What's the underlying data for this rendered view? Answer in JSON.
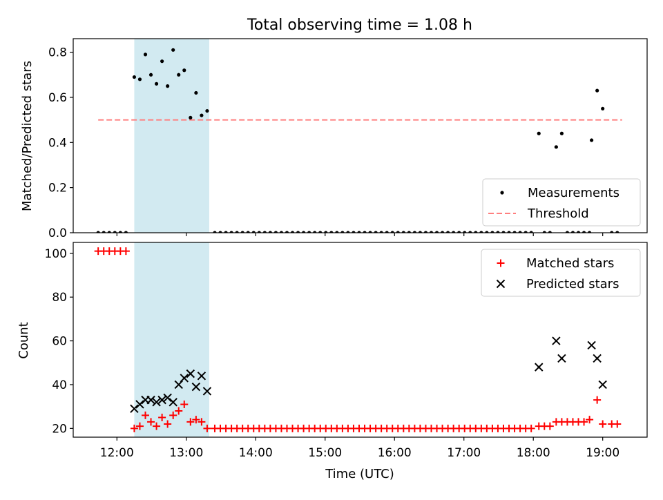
{
  "figure": {
    "title": "Total observing time = 1.08 h",
    "xlabel": "Time (UTC)",
    "xticks": [
      {
        "value": 12,
        "label": "12:00"
      },
      {
        "value": 13,
        "label": "13:00"
      },
      {
        "value": 14,
        "label": "14:00"
      },
      {
        "value": 15,
        "label": "15:00"
      },
      {
        "value": 16,
        "label": "16:00"
      },
      {
        "value": 17,
        "label": "17:00"
      },
      {
        "value": 18,
        "label": "18:00"
      },
      {
        "value": 19,
        "label": "19:00"
      }
    ],
    "xlim": [
      11.37,
      19.64
    ],
    "highlight_span": [
      12.25,
      13.33
    ],
    "colors": {
      "highlight": "#add8e6",
      "measurement": "#000000",
      "threshold": "#ff7f7f",
      "matched": "#ff0000",
      "predicted": "#000000"
    }
  },
  "chart_data": [
    {
      "type": "scatter",
      "ylabel": "Matched/Predicted stars",
      "ylim": [
        0,
        0.86
      ],
      "yticks": [
        {
          "value": 0.0,
          "label": "0.0"
        },
        {
          "value": 0.2,
          "label": "0.2"
        },
        {
          "value": 0.4,
          "label": "0.4"
        },
        {
          "value": 0.6,
          "label": "0.6"
        },
        {
          "value": 0.8,
          "label": "0.8"
        }
      ],
      "legend": {
        "position": "lower-right",
        "entries": [
          "Measurements",
          "Threshold"
        ]
      },
      "threshold": {
        "name": "Threshold",
        "y": 0.5,
        "x": [
          11.73,
          19.28
        ]
      },
      "series": [
        {
          "name": "Measurements",
          "marker": "dot",
          "points": [
            [
              11.73,
              0
            ],
            [
              11.81,
              0
            ],
            [
              11.89,
              0
            ],
            [
              11.97,
              0
            ],
            [
              12.05,
              0
            ],
            [
              12.13,
              0
            ],
            [
              12.25,
              0.69
            ],
            [
              12.33,
              0.68
            ],
            [
              12.41,
              0.79
            ],
            [
              12.49,
              0.7
            ],
            [
              12.57,
              0.66
            ],
            [
              12.65,
              0.76
            ],
            [
              12.73,
              0.65
            ],
            [
              12.81,
              0.81
            ],
            [
              12.89,
              0.7
            ],
            [
              12.97,
              0.72
            ],
            [
              13.06,
              0.51
            ],
            [
              13.14,
              0.62
            ],
            [
              13.22,
              0.52
            ],
            [
              13.3,
              0.54
            ],
            [
              13.41,
              0
            ],
            [
              13.49,
              0
            ],
            [
              13.57,
              0
            ],
            [
              13.65,
              0
            ],
            [
              13.73,
              0
            ],
            [
              13.81,
              0
            ],
            [
              13.89,
              0
            ],
            [
              13.97,
              0
            ],
            [
              14.05,
              0
            ],
            [
              14.13,
              0
            ],
            [
              14.21,
              0
            ],
            [
              14.29,
              0
            ],
            [
              14.37,
              0
            ],
            [
              14.45,
              0
            ],
            [
              14.53,
              0
            ],
            [
              14.61,
              0
            ],
            [
              14.69,
              0
            ],
            [
              14.77,
              0
            ],
            [
              14.85,
              0
            ],
            [
              14.93,
              0
            ],
            [
              15.01,
              0
            ],
            [
              15.09,
              0
            ],
            [
              15.17,
              0
            ],
            [
              15.25,
              0
            ],
            [
              15.33,
              0
            ],
            [
              15.41,
              0
            ],
            [
              15.49,
              0
            ],
            [
              15.57,
              0
            ],
            [
              15.65,
              0
            ],
            [
              15.73,
              0
            ],
            [
              15.81,
              0
            ],
            [
              15.89,
              0
            ],
            [
              15.97,
              0
            ],
            [
              16.05,
              0
            ],
            [
              16.13,
              0
            ],
            [
              16.21,
              0
            ],
            [
              16.29,
              0
            ],
            [
              16.37,
              0
            ],
            [
              16.45,
              0
            ],
            [
              16.53,
              0
            ],
            [
              16.61,
              0
            ],
            [
              16.69,
              0
            ],
            [
              16.77,
              0
            ],
            [
              16.85,
              0
            ],
            [
              16.93,
              0
            ],
            [
              17.01,
              0
            ],
            [
              17.09,
              0
            ],
            [
              17.17,
              0
            ],
            [
              17.25,
              0
            ],
            [
              17.33,
              0
            ],
            [
              17.41,
              0
            ],
            [
              17.49,
              0
            ],
            [
              17.57,
              0
            ],
            [
              17.65,
              0
            ],
            [
              17.73,
              0
            ],
            [
              17.81,
              0
            ],
            [
              17.89,
              0
            ],
            [
              17.97,
              0
            ],
            [
              18.08,
              0.44
            ],
            [
              18.16,
              0
            ],
            [
              18.24,
              0
            ],
            [
              18.33,
              0.38
            ],
            [
              18.41,
              0.44
            ],
            [
              18.49,
              0
            ],
            [
              18.57,
              0
            ],
            [
              18.65,
              0
            ],
            [
              18.73,
              0
            ],
            [
              18.81,
              0
            ],
            [
              18.84,
              0.41
            ],
            [
              18.92,
              0.63
            ],
            [
              19.0,
              0.55
            ],
            [
              19.13,
              0
            ],
            [
              19.21,
              0
            ]
          ]
        }
      ]
    },
    {
      "type": "scatter",
      "ylabel": "Count",
      "ylim": [
        16,
        105
      ],
      "yticks": [
        {
          "value": 20,
          "label": "20"
        },
        {
          "value": 40,
          "label": "40"
        },
        {
          "value": 60,
          "label": "60"
        },
        {
          "value": 80,
          "label": "80"
        },
        {
          "value": 100,
          "label": "100"
        }
      ],
      "legend": {
        "position": "upper-right",
        "entries": [
          "Matched stars",
          "Predicted stars"
        ]
      },
      "series": [
        {
          "name": "Matched stars",
          "marker": "plus",
          "points": [
            [
              11.73,
              101
            ],
            [
              11.81,
              101
            ],
            [
              11.89,
              101
            ],
            [
              11.97,
              101
            ],
            [
              12.05,
              101
            ],
            [
              12.13,
              101
            ],
            [
              12.25,
              20
            ],
            [
              12.33,
              21
            ],
            [
              12.41,
              26
            ],
            [
              12.49,
              23
            ],
            [
              12.57,
              21
            ],
            [
              12.65,
              25
            ],
            [
              12.73,
              22
            ],
            [
              12.81,
              26
            ],
            [
              12.89,
              28
            ],
            [
              12.97,
              31
            ],
            [
              13.06,
              23
            ],
            [
              13.14,
              24
            ],
            [
              13.22,
              23
            ],
            [
              13.3,
              20
            ],
            [
              13.41,
              20
            ],
            [
              13.49,
              20
            ],
            [
              13.57,
              20
            ],
            [
              13.65,
              20
            ],
            [
              13.73,
              20
            ],
            [
              13.81,
              20
            ],
            [
              13.89,
              20
            ],
            [
              13.97,
              20
            ],
            [
              14.05,
              20
            ],
            [
              14.13,
              20
            ],
            [
              14.21,
              20
            ],
            [
              14.29,
              20
            ],
            [
              14.37,
              20
            ],
            [
              14.45,
              20
            ],
            [
              14.53,
              20
            ],
            [
              14.61,
              20
            ],
            [
              14.69,
              20
            ],
            [
              14.77,
              20
            ],
            [
              14.85,
              20
            ],
            [
              14.93,
              20
            ],
            [
              15.01,
              20
            ],
            [
              15.09,
              20
            ],
            [
              15.17,
              20
            ],
            [
              15.25,
              20
            ],
            [
              15.33,
              20
            ],
            [
              15.41,
              20
            ],
            [
              15.49,
              20
            ],
            [
              15.57,
              20
            ],
            [
              15.65,
              20
            ],
            [
              15.73,
              20
            ],
            [
              15.81,
              20
            ],
            [
              15.89,
              20
            ],
            [
              15.97,
              20
            ],
            [
              16.05,
              20
            ],
            [
              16.13,
              20
            ],
            [
              16.21,
              20
            ],
            [
              16.29,
              20
            ],
            [
              16.37,
              20
            ],
            [
              16.45,
              20
            ],
            [
              16.53,
              20
            ],
            [
              16.61,
              20
            ],
            [
              16.69,
              20
            ],
            [
              16.77,
              20
            ],
            [
              16.85,
              20
            ],
            [
              16.93,
              20
            ],
            [
              17.01,
              20
            ],
            [
              17.09,
              20
            ],
            [
              17.17,
              20
            ],
            [
              17.25,
              20
            ],
            [
              17.33,
              20
            ],
            [
              17.41,
              20
            ],
            [
              17.49,
              20
            ],
            [
              17.57,
              20
            ],
            [
              17.65,
              20
            ],
            [
              17.73,
              20
            ],
            [
              17.81,
              20
            ],
            [
              17.89,
              20
            ],
            [
              17.97,
              20
            ],
            [
              18.08,
              21
            ],
            [
              18.16,
              21
            ],
            [
              18.24,
              21
            ],
            [
              18.33,
              23
            ],
            [
              18.41,
              23
            ],
            [
              18.49,
              23
            ],
            [
              18.57,
              23
            ],
            [
              18.65,
              23
            ],
            [
              18.73,
              23
            ],
            [
              18.81,
              24
            ],
            [
              18.92,
              33
            ],
            [
              19.0,
              22
            ],
            [
              19.13,
              22
            ],
            [
              19.21,
              22
            ]
          ]
        },
        {
          "name": "Predicted stars",
          "marker": "x",
          "points": [
            [
              12.25,
              29
            ],
            [
              12.33,
              31
            ],
            [
              12.41,
              33
            ],
            [
              12.49,
              33
            ],
            [
              12.57,
              32
            ],
            [
              12.65,
              33
            ],
            [
              12.73,
              34
            ],
            [
              12.81,
              32
            ],
            [
              12.89,
              40
            ],
            [
              12.97,
              43
            ],
            [
              13.06,
              45
            ],
            [
              13.14,
              39
            ],
            [
              13.22,
              44
            ],
            [
              13.3,
              37
            ],
            [
              18.08,
              48
            ],
            [
              18.33,
              60
            ],
            [
              18.41,
              52
            ],
            [
              18.84,
              58
            ],
            [
              18.92,
              52
            ],
            [
              19.0,
              40
            ]
          ]
        }
      ]
    }
  ]
}
